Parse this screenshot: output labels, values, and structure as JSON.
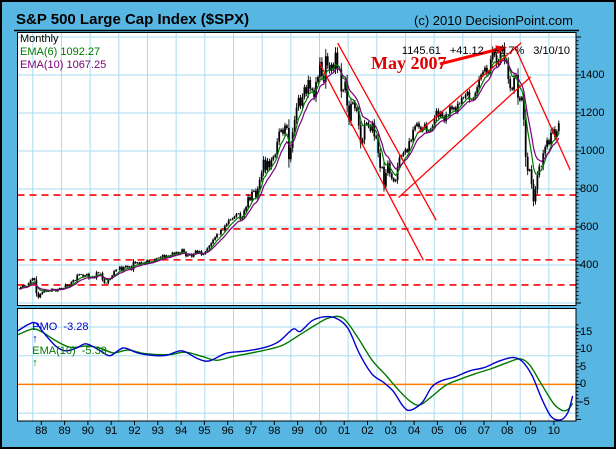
{
  "header": {
    "title": "S&P 500 Large Cap Index ($SPX)",
    "copyright": "(c) 2010 DecisionPoint.com"
  },
  "main_chart": {
    "timeframe_label": "Monthly",
    "legend": [
      {
        "text": "EMA(6) 1092.27",
        "color": "#007a00"
      },
      {
        "text": "EMA(10) 1067.25",
        "color": "#7a007a"
      }
    ],
    "quote": {
      "last": "1145.61",
      "change": "+41.12",
      "percent": "+3.7%",
      "date": "3/10/10"
    },
    "annotation_text": "May 2007"
  },
  "pmo_panel": {
    "legend": {
      "pmo_label": "PMO",
      "pmo_value": "-3.28",
      "pmo_arrow": "↑",
      "ema_label": "EMA(10)",
      "ema_value": "-5.39",
      "ema_arrow": "↑"
    }
  },
  "colors": {
    "background": "#58b7e2",
    "panel": "#ffffff",
    "grid": "#a8ddef",
    "candle": "#000000",
    "ema6": "#007a00",
    "ema10": "#7a007a",
    "pmo": "#0000cc",
    "pmo_ema": "#007a00",
    "zero_line": "#ff7f00",
    "annotation_red": "#ff0000"
  },
  "chart_data": [
    {
      "type": "candlestick",
      "title": "S&P 500 Large Cap Index ($SPX)",
      "timeframe": "Monthly",
      "ylabel": "",
      "y_ticks": [
        1400,
        1200,
        1000,
        800,
        600,
        400
      ],
      "ylim": [
        185,
        1620
      ],
      "x_start_year": 1987,
      "x_tick_labels": [
        "88",
        "89",
        "90",
        "91",
        "92",
        "93",
        "94",
        "95",
        "96",
        "97",
        "98",
        "99",
        "00",
        "01",
        "02",
        "03",
        "04",
        "05",
        "06",
        "07",
        "08",
        "09",
        "10"
      ],
      "last_quote": {
        "close": 1145.61,
        "change": 41.12,
        "percent_change": 3.7,
        "date": "3/10/10"
      },
      "ema_values": {
        "ema6": 1092.27,
        "ema10": 1067.25
      },
      "monthly_closes": [
        {
          "year": 1987,
          "closes": [
            274,
            284,
            292,
            288,
            290,
            304,
            319,
            330,
            322,
            252,
            230,
            247
          ]
        },
        {
          "year": 1988,
          "closes": [
            257,
            268,
            259,
            261,
            262,
            274,
            272,
            262,
            272,
            279,
            274,
            278
          ]
        },
        {
          "year": 1989,
          "closes": [
            297,
            289,
            295,
            310,
            321,
            318,
            346,
            351,
            349,
            340,
            346,
            353
          ]
        },
        {
          "year": 1990,
          "closes": [
            329,
            332,
            340,
            331,
            361,
            358,
            356,
            323,
            306,
            304,
            322,
            330
          ]
        },
        {
          "year": 1991,
          "closes": [
            344,
            367,
            375,
            375,
            390,
            371,
            388,
            395,
            388,
            392,
            375,
            417
          ]
        },
        {
          "year": 1992,
          "closes": [
            409,
            413,
            404,
            415,
            415,
            408,
            424,
            414,
            418,
            419,
            431,
            436
          ]
        },
        {
          "year": 1993,
          "closes": [
            439,
            443,
            452,
            440,
            450,
            451,
            448,
            464,
            459,
            468,
            462,
            466
          ]
        },
        {
          "year": 1994,
          "closes": [
            482,
            467,
            446,
            451,
            457,
            444,
            458,
            475,
            463,
            472,
            454,
            459
          ]
        },
        {
          "year": 1995,
          "closes": [
            470,
            487,
            501,
            515,
            533,
            545,
            562,
            562,
            584,
            582,
            605,
            616
          ]
        },
        {
          "year": 1996,
          "closes": [
            636,
            640,
            646,
            654,
            669,
            671,
            640,
            652,
            687,
            705,
            757,
            741
          ]
        },
        {
          "year": 1997,
          "closes": [
            786,
            791,
            757,
            801,
            848,
            885,
            954,
            899,
            947,
            915,
            955,
            970
          ]
        },
        {
          "year": 1998,
          "closes": [
            980,
            1049,
            1102,
            1112,
            1091,
            1134,
            1121,
            957,
            1017,
            1099,
            1164,
            1229
          ]
        },
        {
          "year": 1999,
          "closes": [
            1280,
            1238,
            1286,
            1335,
            1302,
            1373,
            1329,
            1320,
            1283,
            1363,
            1389,
            1469
          ]
        },
        {
          "year": 2000,
          "closes": [
            1394,
            1366,
            1499,
            1452,
            1421,
            1455,
            1431,
            1518,
            1437,
            1429,
            1315,
            1320
          ]
        },
        {
          "year": 2001,
          "closes": [
            1366,
            1240,
            1160,
            1249,
            1256,
            1224,
            1211,
            1134,
            1041,
            1060,
            1139,
            1148
          ]
        },
        {
          "year": 2002,
          "closes": [
            1130,
            1107,
            1147,
            1077,
            1067,
            990,
            912,
            916,
            815,
            886,
            936,
            880
          ]
        },
        {
          "year": 2003,
          "closes": [
            856,
            841,
            848,
            917,
            964,
            975,
            990,
            1008,
            996,
            1051,
            1058,
            1112
          ]
        },
        {
          "year": 2004,
          "closes": [
            1131,
            1145,
            1126,
            1107,
            1121,
            1141,
            1102,
            1104,
            1115,
            1130,
            1174,
            1212
          ]
        },
        {
          "year": 2005,
          "closes": [
            1181,
            1204,
            1181,
            1157,
            1192,
            1191,
            1234,
            1220,
            1229,
            1207,
            1249,
            1248
          ]
        },
        {
          "year": 2006,
          "closes": [
            1280,
            1281,
            1295,
            1311,
            1270,
            1270,
            1277,
            1304,
            1336,
            1378,
            1401,
            1418
          ]
        },
        {
          "year": 2007,
          "closes": [
            1438,
            1407,
            1421,
            1482,
            1531,
            1503,
            1455,
            1474,
            1527,
            1549,
            1481,
            1468
          ]
        },
        {
          "year": 2008,
          "closes": [
            1379,
            1331,
            1323,
            1386,
            1400,
            1280,
            1267,
            1283,
            1166,
            969,
            896,
            903
          ]
        },
        {
          "year": 2009,
          "closes": [
            826,
            735,
            798,
            873,
            919,
            919,
            987,
            1021,
            1057,
            1036,
            1096,
            1115
          ]
        },
        {
          "year": 2010,
          "closes": [
            1074,
            1104,
            1146
          ]
        }
      ],
      "dashed_support_levels": [
        768,
        590,
        427,
        295
      ],
      "trend_lines": [
        {
          "name": "decline-channel-lower",
          "points": [
            1999.93,
            1465,
            2004.4,
            425
          ]
        },
        {
          "name": "decline-channel-upper",
          "points": [
            2000.72,
            1568,
            2004.95,
            635
          ]
        },
        {
          "name": "rise-channel-lower",
          "points": [
            2003.33,
            755,
            2009.0,
            1390
          ]
        },
        {
          "name": "rise-channel-upper",
          "points": [
            2004.15,
            1095,
            2008.6,
            1570
          ]
        },
        {
          "name": "decline-2008",
          "points": [
            2008.32,
            1550,
            2010.7,
            900
          ]
        }
      ],
      "annotation": {
        "text": "May 2007",
        "arrow_from": [
          2005.11,
          1458
        ],
        "arrow_to": [
          2007.99,
          1547
        ]
      }
    },
    {
      "type": "line",
      "title": "PMO",
      "y_ticks": [
        15,
        10,
        5,
        0,
        -5
      ],
      "ylim": [
        -11,
        22
      ],
      "zero_line": 0,
      "series": [
        {
          "name": "PMO",
          "current": -3.28,
          "color": "#0000cc",
          "points": [
            [
              1987.0,
              15.3
            ],
            [
              1987.45,
              17.2
            ],
            [
              1987.75,
              17.5
            ],
            [
              1988.1,
              14.5
            ],
            [
              1988.6,
              10.8
            ],
            [
              1989.0,
              9.6
            ],
            [
              1989.45,
              10.4
            ],
            [
              1989.85,
              11.6
            ],
            [
              1990.4,
              9.8
            ],
            [
              1990.85,
              8.2
            ],
            [
              1991.4,
              10.4
            ],
            [
              1992.0,
              9.0
            ],
            [
              1992.6,
              8.3
            ],
            [
              1993.2,
              8.3
            ],
            [
              1993.85,
              9.6
            ],
            [
              1994.5,
              7.4
            ],
            [
              1995.0,
              6.7
            ],
            [
              1995.7,
              8.9
            ],
            [
              1996.5,
              9.5
            ],
            [
              1997.3,
              10.5
            ],
            [
              1997.9,
              12.2
            ],
            [
              1998.5,
              15.8
            ],
            [
              1998.8,
              15.1
            ],
            [
              1999.3,
              18.2
            ],
            [
              1999.8,
              19.3
            ],
            [
              2000.3,
              18.9
            ],
            [
              2000.8,
              16.0
            ],
            [
              2001.3,
              8.5
            ],
            [
              2001.8,
              3.0
            ],
            [
              2002.3,
              0.5
            ],
            [
              2002.7,
              -2.0
            ],
            [
              2003.1,
              -6.2
            ],
            [
              2003.4,
              -7.4
            ],
            [
              2003.9,
              -5.2
            ],
            [
              2004.3,
              -0.8
            ],
            [
              2004.7,
              1.0
            ],
            [
              2005.3,
              2.2
            ],
            [
              2005.9,
              3.9
            ],
            [
              2006.5,
              4.8
            ],
            [
              2007.1,
              6.6
            ],
            [
              2007.7,
              7.7
            ],
            [
              2008.1,
              6.5
            ],
            [
              2008.5,
              2.5
            ],
            [
              2008.9,
              -4.0
            ],
            [
              2009.3,
              -9.2
            ],
            [
              2009.7,
              -10.1
            ],
            [
              2010.0,
              -8.0
            ],
            [
              2010.2,
              -3.28
            ]
          ]
        },
        {
          "name": "EMA(10)",
          "current": -5.39,
          "color": "#007a00",
          "points": [
            [
              1987.0,
              14.2
            ],
            [
              1987.6,
              15.8
            ],
            [
              1988.0,
              15.0
            ],
            [
              1988.6,
              12.4
            ],
            [
              1989.2,
              10.6
            ],
            [
              1989.9,
              11.0
            ],
            [
              1990.5,
              10.2
            ],
            [
              1991.0,
              9.0
            ],
            [
              1991.6,
              9.8
            ],
            [
              1992.3,
              8.8
            ],
            [
              1993.3,
              8.5
            ],
            [
              1994.0,
              9.2
            ],
            [
              1994.7,
              8.0
            ],
            [
              1995.3,
              6.9
            ],
            [
              1996.0,
              8.0
            ],
            [
              1997.0,
              9.3
            ],
            [
              1998.0,
              11.0
            ],
            [
              1998.7,
              13.8
            ],
            [
              1999.4,
              16.8
            ],
            [
              2000.0,
              19.0
            ],
            [
              2000.6,
              18.9
            ],
            [
              2001.2,
              13.5
            ],
            [
              2001.8,
              7.0
            ],
            [
              2002.4,
              2.5
            ],
            [
              2002.9,
              -1.5
            ],
            [
              2003.4,
              -4.8
            ],
            [
              2003.8,
              -5.9
            ],
            [
              2004.3,
              -3.5
            ],
            [
              2004.9,
              -0.2
            ],
            [
              2005.5,
              1.5
            ],
            [
              2006.1,
              3.0
            ],
            [
              2006.8,
              4.5
            ],
            [
              2007.5,
              6.3
            ],
            [
              2008.0,
              7.3
            ],
            [
              2008.4,
              5.5
            ],
            [
              2008.9,
              0.0
            ],
            [
              2009.4,
              -5.5
            ],
            [
              2009.75,
              -7.4
            ],
            [
              2010.0,
              -7.2
            ],
            [
              2010.2,
              -5.39
            ]
          ]
        }
      ]
    }
  ]
}
